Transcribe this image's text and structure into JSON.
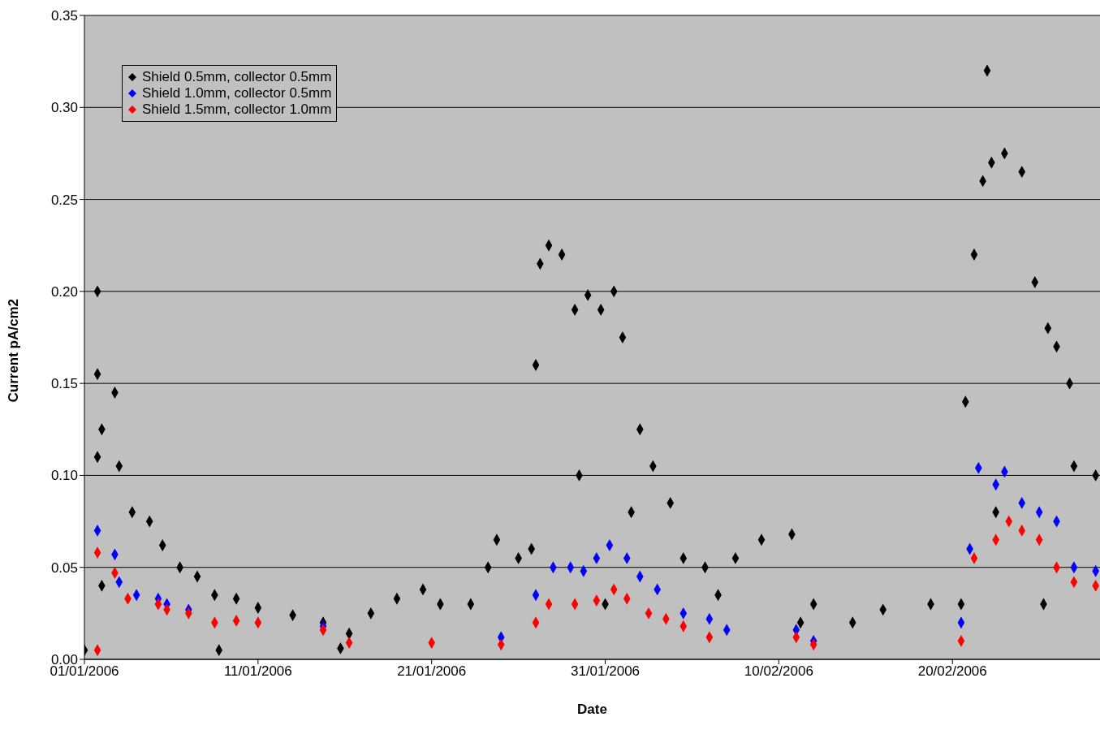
{
  "chart_data": {
    "type": "scatter",
    "xlabel": "Date",
    "ylabel": "Current pA/cm2",
    "xlim": [
      "2006-01-01",
      "2006-02-28T12:00"
    ],
    "xticks": [
      {
        "value": "2006-01-01",
        "label": "01/01/2006"
      },
      {
        "value": "2006-01-11",
        "label": "11/01/2006"
      },
      {
        "value": "2006-01-21",
        "label": "21/01/2006"
      },
      {
        "value": "2006-01-31",
        "label": "31/01/2006"
      },
      {
        "value": "2006-02-10",
        "label": "10/02/2006"
      },
      {
        "value": "2006-02-20",
        "label": "20/02/2006"
      }
    ],
    "ylim": [
      0,
      0.35
    ],
    "yticks": [
      {
        "value": 0,
        "label": "0.00"
      },
      {
        "value": 0.05,
        "label": "0.05"
      },
      {
        "value": 0.1,
        "label": "0.10"
      },
      {
        "value": 0.15,
        "label": "0.15"
      },
      {
        "value": 0.2,
        "label": "0.20"
      },
      {
        "value": 0.25,
        "label": "0.25"
      },
      {
        "value": 0.3,
        "label": "0.30"
      },
      {
        "value": 0.35,
        "label": "0.35"
      }
    ],
    "grid": "y",
    "legend": "top left",
    "marker": "diamond",
    "series": [
      {
        "name": "Shield 0.5mm, collector 0.5mm",
        "color": "#000000",
        "x": [
          "2006-01-01T00:00",
          "2006-01-01T18:00",
          "2006-01-01T18:00",
          "2006-01-01T18:00",
          "2006-01-02T00:00",
          "2006-01-02T00:00",
          "2006-01-02T18:00",
          "2006-01-03T00:00",
          "2006-01-03T18:00",
          "2006-01-04T18:00",
          "2006-01-05T12:00",
          "2006-01-06T12:00",
          "2006-01-07T12:00",
          "2006-01-08T12:00",
          "2006-01-08T18:00",
          "2006-01-09T18:00",
          "2006-01-11T00:00",
          "2006-01-13T00:00",
          "2006-01-14T18:00",
          "2006-01-15T18:00",
          "2006-01-16T06:00",
          "2006-01-17T12:00",
          "2006-01-19T00:00",
          "2006-01-20T12:00",
          "2006-01-21T12:00",
          "2006-01-23T06:00",
          "2006-01-24T06:00",
          "2006-01-24T18:00",
          "2006-01-26T00:00",
          "2006-01-26T18:00",
          "2006-01-27T00:00",
          "2006-01-27T06:00",
          "2006-01-27T18:00",
          "2006-01-28T12:00",
          "2006-01-29T06:00",
          "2006-01-29T12:00",
          "2006-01-30T00:00",
          "2006-01-30T18:00",
          "2006-01-31T00:00",
          "2006-01-31T12:00",
          "2006-02-01T00:00",
          "2006-02-01T12:00",
          "2006-02-02T00:00",
          "2006-02-02T18:00",
          "2006-02-03T18:00",
          "2006-02-04T12:00",
          "2006-02-05T18:00",
          "2006-02-06T12:00",
          "2006-02-07T12:00",
          "2006-02-09T00:00",
          "2006-02-10T18:00",
          "2006-02-11T06:00",
          "2006-02-12T00:00",
          "2006-02-14T06:00",
          "2006-02-16T00:00",
          "2006-02-18T18:00",
          "2006-02-20T12:00",
          "2006-02-20T18:00",
          "2006-02-21T06:00",
          "2006-02-21T18:00",
          "2006-02-22T00:00",
          "2006-02-22T06:00",
          "2006-02-22T12:00",
          "2006-02-23T00:00",
          "2006-02-24T00:00",
          "2006-02-24T18:00",
          "2006-02-25T06:00",
          "2006-02-25T12:00",
          "2006-02-26T00:00",
          "2006-02-26T18:00",
          "2006-02-27T00:00",
          "2006-02-28T06:00"
        ],
        "values": [
          0.005,
          0.2,
          0.155,
          0.11,
          0.125,
          0.04,
          0.145,
          0.105,
          0.08,
          0.075,
          0.062,
          0.05,
          0.045,
          0.035,
          0.005,
          0.033,
          0.028,
          0.024,
          0.02,
          0.006,
          0.014,
          0.025,
          0.033,
          0.038,
          0.03,
          0.03,
          0.05,
          0.065,
          0.055,
          0.06,
          0.16,
          0.215,
          0.225,
          0.22,
          0.19,
          0.1,
          0.198,
          0.19,
          0.03,
          0.2,
          0.175,
          0.08,
          0.125,
          0.105,
          0.085,
          0.055,
          0.05,
          0.035,
          0.055,
          0.065,
          0.068,
          0.02,
          0.03,
          0.02,
          0.027,
          0.03,
          0.03,
          0.14,
          0.22,
          0.26,
          0.32,
          0.27,
          0.08,
          0.275,
          0.265,
          0.205,
          0.03,
          0.18,
          0.17,
          0.15,
          0.105,
          0.1
        ]
      },
      {
        "name": "Shield 1.0mm, collector 0.5mm",
        "color": "#0000ff",
        "x": [
          "2006-01-01T18:00",
          "2006-01-02T18:00",
          "2006-01-03T00:00",
          "2006-01-04T00:00",
          "2006-01-05T06:00",
          "2006-01-05T18:00",
          "2006-01-07T00:00",
          "2006-01-14T18:00",
          "2006-01-25T00:00",
          "2006-01-27T00:00",
          "2006-01-28T00:00",
          "2006-01-29T00:00",
          "2006-01-29T18:00",
          "2006-01-30T12:00",
          "2006-01-31T06:00",
          "2006-02-01T06:00",
          "2006-02-02T00:00",
          "2006-02-03T00:00",
          "2006-02-04T12:00",
          "2006-02-06T00:00",
          "2006-02-07T00:00",
          "2006-02-11T00:00",
          "2006-02-12T00:00",
          "2006-02-20T12:00",
          "2006-02-21T00:00",
          "2006-02-21T12:00",
          "2006-02-22T12:00",
          "2006-02-23T00:00",
          "2006-02-24T00:00",
          "2006-02-25T00:00",
          "2006-02-26T00:00",
          "2006-02-27T00:00",
          "2006-02-28T06:00"
        ],
        "values": [
          0.07,
          0.057,
          0.042,
          0.035,
          0.033,
          0.03,
          0.027,
          0.018,
          0.012,
          0.035,
          0.05,
          0.05,
          0.048,
          0.055,
          0.062,
          0.055,
          0.045,
          0.038,
          0.025,
          0.022,
          0.016,
          0.016,
          0.01,
          0.02,
          0.06,
          0.104,
          0.095,
          0.102,
          0.085,
          0.08,
          0.075,
          0.05,
          0.048
        ]
      },
      {
        "name": "Shield 1.5mm, collector 1.0mm",
        "color": "#ff0000",
        "x": [
          "2006-01-01T18:00",
          "2006-01-01T18:00",
          "2006-01-02T18:00",
          "2006-01-03T12:00",
          "2006-01-05T06:00",
          "2006-01-05T18:00",
          "2006-01-07T00:00",
          "2006-01-08T12:00",
          "2006-01-09T18:00",
          "2006-01-11T00:00",
          "2006-01-14T18:00",
          "2006-01-16T06:00",
          "2006-01-21T00:00",
          "2006-01-25T00:00",
          "2006-01-27T00:00",
          "2006-01-27T18:00",
          "2006-01-29T06:00",
          "2006-01-30T12:00",
          "2006-01-31T12:00",
          "2006-02-01T06:00",
          "2006-02-02T12:00",
          "2006-02-03T12:00",
          "2006-02-04T12:00",
          "2006-02-06T00:00",
          "2006-02-11T00:00",
          "2006-02-12T00:00",
          "2006-02-20T12:00",
          "2006-02-21T06:00",
          "2006-02-22T12:00",
          "2006-02-23T06:00",
          "2006-02-24T00:00",
          "2006-02-25T00:00",
          "2006-02-26T00:00",
          "2006-02-27T00:00",
          "2006-02-28T06:00"
        ],
        "values": [
          0.058,
          0.005,
          0.047,
          0.033,
          0.03,
          0.027,
          0.025,
          0.02,
          0.021,
          0.02,
          0.016,
          0.009,
          0.009,
          0.008,
          0.02,
          0.03,
          0.03,
          0.032,
          0.038,
          0.033,
          0.025,
          0.022,
          0.018,
          0.012,
          0.012,
          0.008,
          0.01,
          0.055,
          0.065,
          0.075,
          0.07,
          0.065,
          0.05,
          0.042,
          0.04
        ]
      }
    ]
  }
}
